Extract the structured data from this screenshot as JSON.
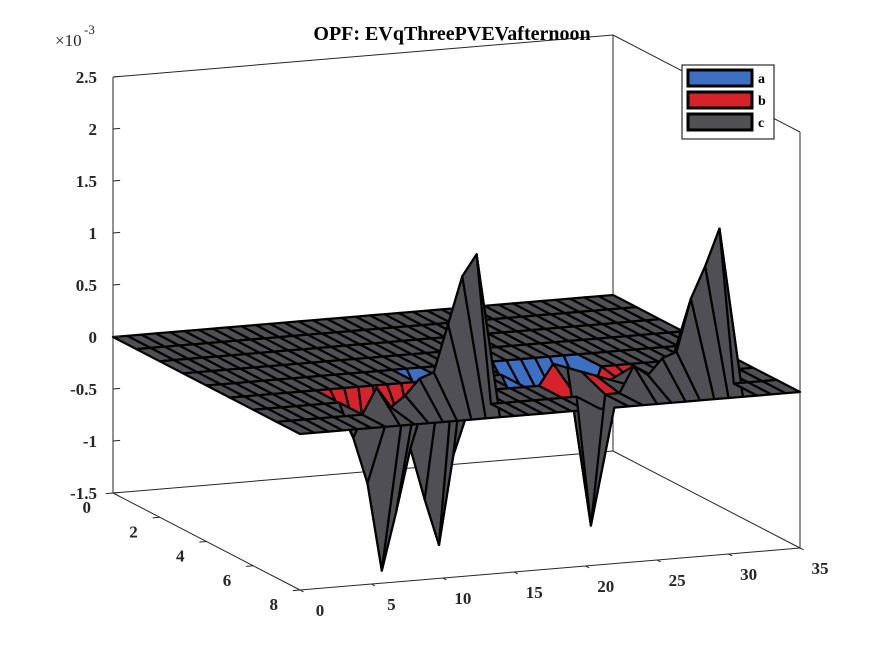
{
  "chart_data": {
    "type": "surface3d",
    "title": "OPF: EVqThreePVEVafternoon",
    "y_exponent_base": "×10",
    "y_exponent_power": "-3",
    "x_ticks": [
      "0",
      "5",
      "10",
      "15",
      "20",
      "25",
      "30",
      "35"
    ],
    "y_ticks": [
      "0",
      "2",
      "4",
      "6",
      "8"
    ],
    "z_ticks": [
      "-1.5",
      "-1",
      "-0.5",
      "0",
      "0.5",
      "1",
      "1.5",
      "2",
      "2.5"
    ],
    "xlim": [
      0,
      35
    ],
    "ylim": [
      0,
      8
    ],
    "zlim": [
      -1.5,
      2.5
    ],
    "z_unit": "×10^-3",
    "legend_position": "top-right",
    "series": [
      {
        "name": "a",
        "color": "#3d6fc2",
        "row": 5,
        "nonzero": [
          [
            14,
            -0.35
          ],
          [
            20,
            -0.3
          ],
          [
            21,
            -0.3
          ],
          [
            22,
            -0.32
          ],
          [
            23,
            -0.33
          ],
          [
            24,
            -0.35
          ],
          [
            25,
            -0.38
          ]
        ]
      },
      {
        "name": "b",
        "color": "#d6222b",
        "row": 6,
        "nonzero": [
          [
            7,
            -0.35
          ],
          [
            8,
            -0.8
          ],
          [
            9,
            -1.65
          ],
          [
            10,
            -1.1
          ],
          [
            11,
            -0.5
          ],
          [
            12,
            -1.0
          ],
          [
            13,
            -1.45
          ],
          [
            14,
            -0.6
          ],
          [
            15,
            -0.2
          ],
          [
            21,
            0.2
          ],
          [
            22,
            0.15
          ],
          [
            23,
            0.1
          ],
          [
            24,
            0.05
          ],
          [
            25,
            0.0
          ],
          [
            26,
            -0.05
          ],
          [
            27,
            -0.1
          ]
        ]
      },
      {
        "name": "c",
        "color": "#4f4f54",
        "row": 7,
        "nonzero": [
          [
            7,
            0.25
          ],
          [
            8,
            0.05
          ],
          [
            9,
            0.15
          ],
          [
            10,
            0.3
          ],
          [
            11,
            0.35
          ],
          [
            12,
            0.8
          ],
          [
            13,
            1.25
          ],
          [
            14,
            1.45
          ],
          [
            22,
            -1.25
          ],
          [
            25,
            0.25
          ],
          [
            26,
            0.15
          ],
          [
            27,
            0.3
          ],
          [
            28,
            0.35
          ],
          [
            29,
            0.85
          ],
          [
            30,
            1.15
          ],
          [
            31,
            1.5
          ]
        ]
      }
    ]
  }
}
